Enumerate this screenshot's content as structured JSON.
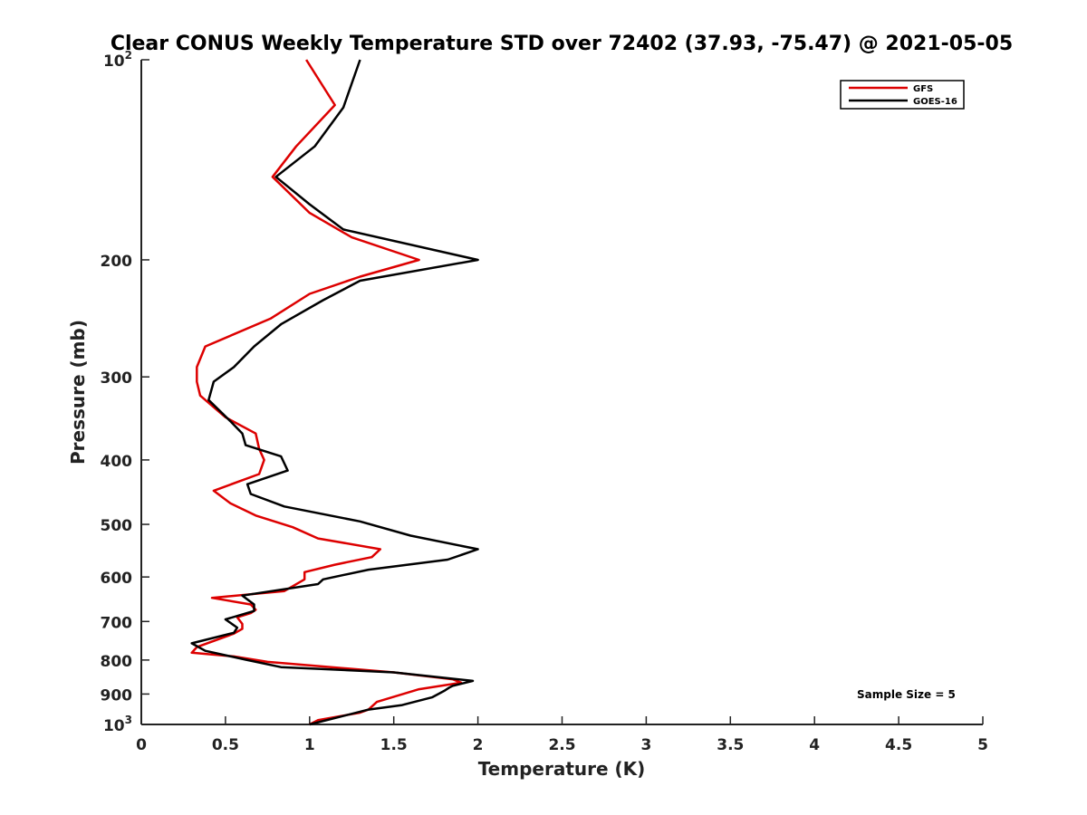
{
  "chart_data": {
    "type": "line",
    "title": "Clear CONUS Weekly Temperature STD over 72402 (37.93, -75.47) @ 2021-05-05",
    "xlabel": "Temperature (K)",
    "ylabel": "Pressure (mb)",
    "xlim": [
      0,
      5
    ],
    "ylim": [
      100,
      1000
    ],
    "yscale": "log",
    "yreversed": true,
    "xticks": [
      0,
      0.5,
      1,
      1.5,
      2,
      2.5,
      3,
      3.5,
      4,
      4.5,
      5
    ],
    "xtick_labels": [
      "0",
      "0.5",
      "1",
      "1.5",
      "2",
      "2.5",
      "3",
      "3.5",
      "4",
      "4.5",
      "5"
    ],
    "yticks": [
      {
        "value": 100,
        "base": "10",
        "exp": "2"
      },
      {
        "value": 200,
        "label": "200"
      },
      {
        "value": 300,
        "label": "300"
      },
      {
        "value": 400,
        "label": "400"
      },
      {
        "value": 500,
        "label": "500"
      },
      {
        "value": 600,
        "label": "600"
      },
      {
        "value": 700,
        "label": "700"
      },
      {
        "value": 800,
        "label": "800"
      },
      {
        "value": 900,
        "label": "900"
      },
      {
        "value": 1000,
        "base": "10",
        "exp": "3"
      }
    ],
    "legend_position": "top-right",
    "series": [
      {
        "name": "GFS",
        "color": "#dd0000",
        "points": [
          [
            0.98,
            100
          ],
          [
            1.15,
            117
          ],
          [
            0.92,
            135
          ],
          [
            0.78,
            150
          ],
          [
            1.0,
            170
          ],
          [
            1.25,
            185
          ],
          [
            1.65,
            200
          ],
          [
            1.3,
            212
          ],
          [
            1.0,
            225
          ],
          [
            0.77,
            245
          ],
          [
            0.38,
            270
          ],
          [
            0.33,
            290
          ],
          [
            0.33,
            305
          ],
          [
            0.35,
            320
          ],
          [
            0.5,
            345
          ],
          [
            0.68,
            365
          ],
          [
            0.7,
            385
          ],
          [
            0.73,
            400
          ],
          [
            0.7,
            420
          ],
          [
            0.43,
            445
          ],
          [
            0.53,
            465
          ],
          [
            0.68,
            485
          ],
          [
            0.9,
            505
          ],
          [
            1.05,
            525
          ],
          [
            1.42,
            545
          ],
          [
            1.37,
            560
          ],
          [
            1.15,
            575
          ],
          [
            0.97,
            590
          ],
          [
            0.97,
            605
          ],
          [
            0.85,
            630
          ],
          [
            0.42,
            645
          ],
          [
            0.65,
            660
          ],
          [
            0.68,
            672
          ],
          [
            0.65,
            680
          ],
          [
            0.57,
            690
          ],
          [
            0.6,
            706
          ],
          [
            0.6,
            718
          ],
          [
            0.55,
            730
          ],
          [
            0.33,
            765
          ],
          [
            0.3,
            780
          ],
          [
            0.55,
            790
          ],
          [
            0.75,
            805
          ],
          [
            1.5,
            835
          ],
          [
            1.85,
            855
          ],
          [
            1.9,
            865
          ],
          [
            1.65,
            885
          ],
          [
            1.4,
            925
          ],
          [
            1.35,
            950
          ],
          [
            1.3,
            960
          ],
          [
            1.05,
            985
          ],
          [
            1.0,
            1000
          ]
        ]
      },
      {
        "name": "GOES-16",
        "color": "#000000",
        "points": [
          [
            1.3,
            100
          ],
          [
            1.2,
            118
          ],
          [
            1.03,
            135
          ],
          [
            0.8,
            150
          ],
          [
            1.0,
            165
          ],
          [
            1.2,
            180
          ],
          [
            2.0,
            200
          ],
          [
            1.3,
            215
          ],
          [
            1.08,
            230
          ],
          [
            0.83,
            250
          ],
          [
            0.67,
            270
          ],
          [
            0.55,
            290
          ],
          [
            0.43,
            305
          ],
          [
            0.4,
            325
          ],
          [
            0.53,
            350
          ],
          [
            0.6,
            365
          ],
          [
            0.62,
            380
          ],
          [
            0.83,
            395
          ],
          [
            0.87,
            415
          ],
          [
            0.63,
            435
          ],
          [
            0.65,
            450
          ],
          [
            0.85,
            470
          ],
          [
            1.3,
            495
          ],
          [
            1.6,
            520
          ],
          [
            2.0,
            545
          ],
          [
            1.82,
            565
          ],
          [
            1.35,
            585
          ],
          [
            1.08,
            605
          ],
          [
            1.05,
            615
          ],
          [
            0.6,
            640
          ],
          [
            0.67,
            660
          ],
          [
            0.67,
            675
          ],
          [
            0.5,
            695
          ],
          [
            0.57,
            715
          ],
          [
            0.55,
            728
          ],
          [
            0.3,
            755
          ],
          [
            0.38,
            775
          ],
          [
            0.63,
            800
          ],
          [
            0.83,
            820
          ],
          [
            1.5,
            835
          ],
          [
            1.97,
            860
          ],
          [
            1.85,
            875
          ],
          [
            1.83,
            880
          ],
          [
            1.8,
            890
          ],
          [
            1.73,
            910
          ],
          [
            1.55,
            935
          ],
          [
            1.35,
            950
          ],
          [
            1.0,
            1000
          ]
        ]
      }
    ],
    "annotation": "Sample Size = 5"
  }
}
